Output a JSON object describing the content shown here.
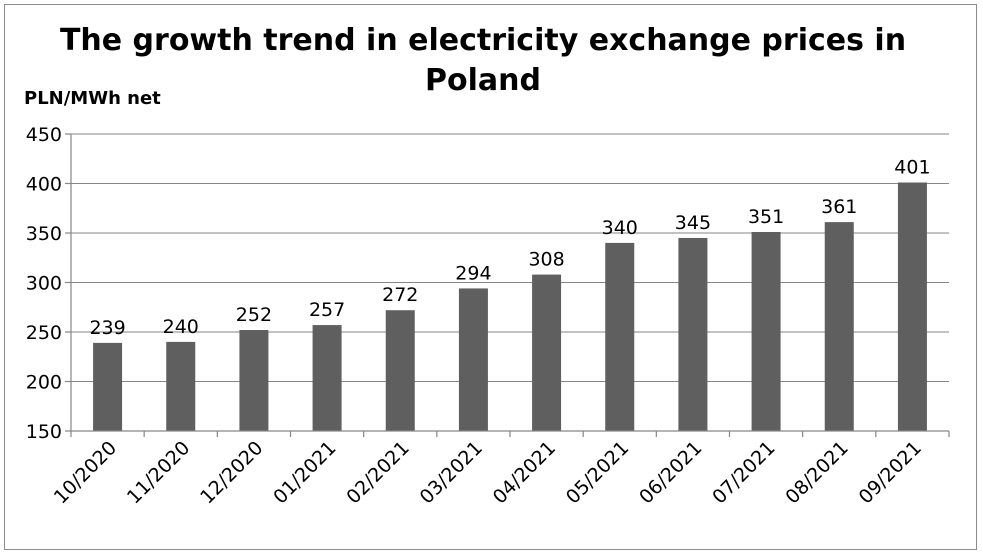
{
  "chart_data": {
    "type": "bar",
    "title": "The growth trend in electricity exchange prices in Poland",
    "title_lines": [
      "The growth trend in electricity exchange prices in",
      "Poland"
    ],
    "ylabel": "PLN/MWh net",
    "xlabel": "",
    "categories": [
      "10/2020",
      "11/2020",
      "12/2020",
      "01/2021",
      "02/2021",
      "03/2021",
      "04/2021",
      "05/2021",
      "06/2021",
      "07/2021",
      "08/2021",
      "09/2021"
    ],
    "values": [
      239,
      240,
      252,
      257,
      272,
      294,
      308,
      340,
      345,
      351,
      361,
      401
    ],
    "ylim": [
      150,
      450
    ],
    "yticks": [
      150,
      200,
      250,
      300,
      350,
      400,
      450
    ],
    "grid": true,
    "bar_color": "#5f5f5f"
  }
}
